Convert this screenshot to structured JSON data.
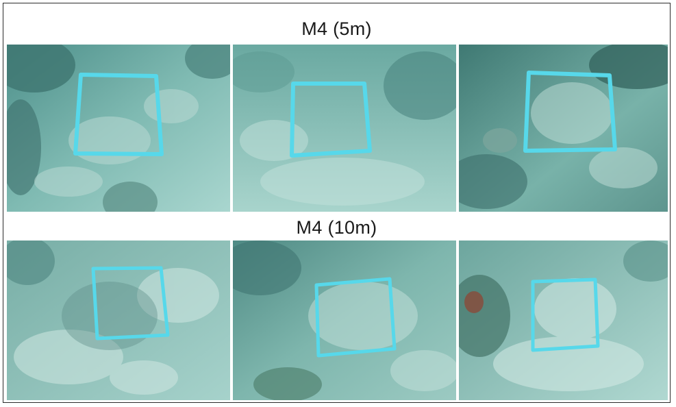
{
  "rows": [
    {
      "title": "M4 (5m)",
      "photos": [
        {
          "quadrat": "quadrat-frame"
        },
        {
          "quadrat": "quadrat-frame"
        },
        {
          "quadrat": "quadrat-frame"
        }
      ]
    },
    {
      "title": "M4 (10m)",
      "photos": [
        {
          "quadrat": "quadrat-frame"
        },
        {
          "quadrat": "quadrat-frame"
        },
        {
          "quadrat": "quadrat-frame"
        }
      ]
    }
  ],
  "colors": {
    "water": "#5fa5a0",
    "water_light": "#9fcfc8",
    "seabed_dark": "#3c6e6a",
    "rubble": "#b9d9d3",
    "quadrat": "#57d8ea",
    "frame_border": "#2a2a2a"
  }
}
